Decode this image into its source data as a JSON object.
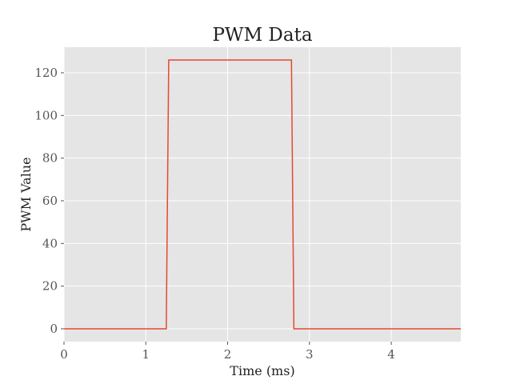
{
  "chart_data": {
    "type": "line",
    "title": "PWM Data",
    "xlabel": "Time (ms)",
    "ylabel": "PWM Value",
    "xlim": [
      0,
      4.85
    ],
    "ylim": [
      -6,
      132
    ],
    "xticks": [
      0,
      1,
      2,
      3,
      4
    ],
    "yticks": [
      0,
      20,
      40,
      60,
      80,
      100,
      120
    ],
    "grid": true,
    "colors": {
      "plot_background": "#e5e5e5",
      "grid": "#ffffff",
      "line": "#e24a33"
    },
    "series": [
      {
        "x": [
          0,
          1.25,
          1.28,
          2.78,
          2.81,
          4.85
        ],
        "y": [
          0,
          0,
          126,
          126,
          0,
          0
        ]
      }
    ]
  }
}
